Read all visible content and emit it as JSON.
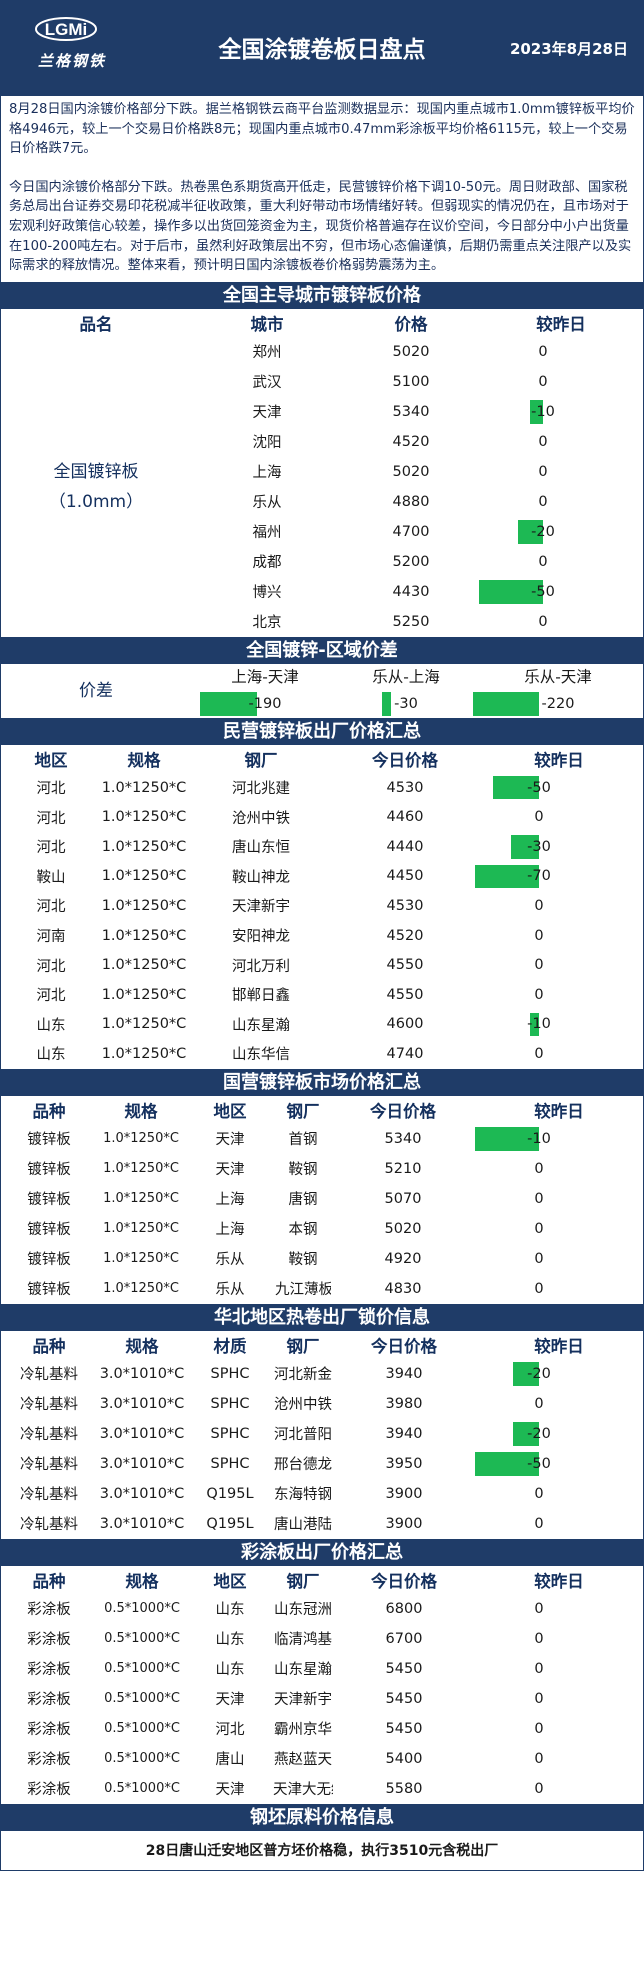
{
  "header": {
    "logo_mark": "LGMi",
    "logo_text": "兰格钢铁",
    "title": "全国涂镀卷板日盘点",
    "date": "2023年8月28日"
  },
  "intro": {
    "p1": "8月28日国内涂镀价格部分下跌。据兰格钢铁云商平台监测数据显示：现国内重点城市1.0mm镀锌板平均价格4946元，较上一个交易日价格跌8元；现国内重点城市0.47mm彩涂板平均价格6115元，较上一个交易日价格跌7元。",
    "p2": "今日国内涂镀价格部分下跌。热卷黑色系期货高开低走，民营镀锌价格下调10-50元。周日财政部、国家税务总局出台证券交易印花税减半征收政策，重大利好带动市场情绪好转。但弱现实的情况仍在，且市场对于宏观利好政策信心较差，操作多以出货回笼资金为主，现货价格普遍存在议价空间，今日部分中小户出货量在100-200吨左右。对于后市，虽然利好政策层出不穷，但市场心态偏谨慎，后期仍需重点关注限产以及实际需求的释放情况。整体来看，预计明日国内涂镀板卷价格弱势震荡为主。"
  },
  "colors": {
    "navy": "#1f3c68",
    "bar_green": "#1db954"
  },
  "city_prices": {
    "title": "全国主导城市镀锌板价格",
    "headers": [
      "品名",
      "城市",
      "价格",
      "较昨日"
    ],
    "product_line1": "全国镀锌板",
    "product_line2": "（1.0mm）",
    "rows": [
      {
        "city": "郑州",
        "price": "5020",
        "change": "0",
        "change_value": 0
      },
      {
        "city": "武汉",
        "price": "5100",
        "change": "0",
        "change_value": 0
      },
      {
        "city": "天津",
        "price": "5340",
        "change": "-10",
        "change_value": -10
      },
      {
        "city": "沈阳",
        "price": "4520",
        "change": "0",
        "change_value": 0
      },
      {
        "city": "上海",
        "price": "5020",
        "change": "0",
        "change_value": 0
      },
      {
        "city": "乐从",
        "price": "4880",
        "change": "0",
        "change_value": 0
      },
      {
        "city": "福州",
        "price": "4700",
        "change": "-20",
        "change_value": -20
      },
      {
        "city": "成都",
        "price": "5200",
        "change": "0",
        "change_value": 0
      },
      {
        "city": "博兴",
        "price": "4430",
        "change": "-50",
        "change_value": -50
      },
      {
        "city": "北京",
        "price": "5250",
        "change": "0",
        "change_value": 0
      }
    ]
  },
  "spread": {
    "title": "全国镀锌-区域价差",
    "label": "价差",
    "cols": [
      {
        "name": "上海-天津",
        "value": "-190",
        "number": -190
      },
      {
        "name": "乐从-上海",
        "value": "-30",
        "number": -30
      },
      {
        "name": "乐从-天津",
        "value": "-220",
        "number": -220
      }
    ]
  },
  "private_mills": {
    "title": "民营镀锌板出厂价格汇总",
    "headers": [
      "地区",
      "规格",
      "钢厂",
      "今日价格",
      "较昨日"
    ],
    "rows": [
      {
        "region": "河北",
        "spec": "1.0*1250*C",
        "mill": "河北兆建",
        "price": "4530",
        "change": "-50",
        "change_value": -50
      },
      {
        "region": "河北",
        "spec": "1.0*1250*C",
        "mill": "沧州中铁",
        "price": "4460",
        "change": "0",
        "change_value": 0
      },
      {
        "region": "河北",
        "spec": "1.0*1250*C",
        "mill": "唐山东恒",
        "price": "4440",
        "change": "-30",
        "change_value": -30
      },
      {
        "region": "鞍山",
        "spec": "1.0*1250*C",
        "mill": "鞍山神龙",
        "price": "4450",
        "change": "-70",
        "change_value": -70
      },
      {
        "region": "河北",
        "spec": "1.0*1250*C",
        "mill": "天津新宇",
        "price": "4530",
        "change": "0",
        "change_value": 0
      },
      {
        "region": "河南",
        "spec": "1.0*1250*C",
        "mill": "安阳神龙",
        "price": "4520",
        "change": "0",
        "change_value": 0
      },
      {
        "region": "河北",
        "spec": "1.0*1250*C",
        "mill": "河北万利",
        "price": "4550",
        "change": "0",
        "change_value": 0
      },
      {
        "region": "河北",
        "spec": "1.0*1250*C",
        "mill": "邯郸日鑫",
        "price": "4550",
        "change": "0",
        "change_value": 0
      },
      {
        "region": "山东",
        "spec": "1.0*1250*C",
        "mill": "山东星瀚",
        "price": "4600",
        "change": "-10",
        "change_value": -10
      },
      {
        "region": "山东",
        "spec": "1.0*1250*C",
        "mill": "山东华信",
        "price": "4740",
        "change": "0",
        "change_value": 0
      }
    ]
  },
  "state_mills": {
    "title": "国营镀锌板市场价格汇总",
    "headers": [
      "品种",
      "规格",
      "地区",
      "钢厂",
      "今日价格",
      "较昨日"
    ],
    "rows": [
      {
        "variety": "镀锌板",
        "spec": "1.0*1250*C",
        "region": "天津",
        "mill": "首钢",
        "price": "5340",
        "change": "-10",
        "change_value": -10
      },
      {
        "variety": "镀锌板",
        "spec": "1.0*1250*C",
        "region": "天津",
        "mill": "鞍钢",
        "price": "5210",
        "change": "0",
        "change_value": 0
      },
      {
        "variety": "镀锌板",
        "spec": "1.0*1250*C",
        "region": "上海",
        "mill": "唐钢",
        "price": "5070",
        "change": "0",
        "change_value": 0
      },
      {
        "variety": "镀锌板",
        "spec": "1.0*1250*C",
        "region": "上海",
        "mill": "本钢",
        "price": "5020",
        "change": "0",
        "change_value": 0
      },
      {
        "variety": "镀锌板",
        "spec": "1.0*1250*C",
        "region": "乐从",
        "mill": "鞍钢",
        "price": "4920",
        "change": "0",
        "change_value": 0
      },
      {
        "variety": "镀锌板",
        "spec": "1.0*1250*C",
        "region": "乐从",
        "mill": "九江薄板",
        "price": "4830",
        "change": "0",
        "change_value": 0
      }
    ]
  },
  "north_hot_roll": {
    "title": "华北地区热卷出厂锁价信息",
    "headers": [
      "品种",
      "规格",
      "材质",
      "钢厂",
      "今日价格",
      "较昨日"
    ],
    "rows": [
      {
        "variety": "冷轧基料",
        "spec": "3.0*1010*C",
        "material": "SPHC",
        "mill": "河北新金",
        "price": "3940",
        "change": "-20",
        "change_value": -20
      },
      {
        "variety": "冷轧基料",
        "spec": "3.0*1010*C",
        "material": "SPHC",
        "mill": "沧州中铁",
        "price": "3980",
        "change": "0",
        "change_value": 0
      },
      {
        "variety": "冷轧基料",
        "spec": "3.0*1010*C",
        "material": "SPHC",
        "mill": "河北普阳",
        "price": "3940",
        "change": "-20",
        "change_value": -20
      },
      {
        "variety": "冷轧基料",
        "spec": "3.0*1010*C",
        "material": "SPHC",
        "mill": "邢台德龙",
        "price": "3950",
        "change": "-50",
        "change_value": -50
      },
      {
        "variety": "冷轧基料",
        "spec": "3.0*1010*C",
        "material": "Q195L",
        "mill": "东海特钢",
        "price": "3900",
        "change": "0",
        "change_value": 0
      },
      {
        "variety": "冷轧基料",
        "spec": "3.0*1010*C",
        "material": "Q195L",
        "mill": "唐山港陆",
        "price": "3900",
        "change": "0",
        "change_value": 0
      }
    ]
  },
  "color_coated": {
    "title": "彩涂板出厂价格汇总",
    "headers": [
      "品种",
      "规格",
      "地区",
      "钢厂",
      "今日价格",
      "较昨日"
    ],
    "rows": [
      {
        "variety": "彩涂板",
        "spec": "0.5*1000*C",
        "region": "山东",
        "mill": "山东冠洲",
        "price": "6800",
        "change": "0",
        "change_value": 0
      },
      {
        "variety": "彩涂板",
        "spec": "0.5*1000*C",
        "region": "山东",
        "mill": "临清鸿基",
        "price": "6700",
        "change": "0",
        "change_value": 0
      },
      {
        "variety": "彩涂板",
        "spec": "0.5*1000*C",
        "region": "山东",
        "mill": "山东星瀚",
        "price": "5450",
        "change": "0",
        "change_value": 0
      },
      {
        "variety": "彩涂板",
        "spec": "0.5*1000*C",
        "region": "天津",
        "mill": "天津新宇",
        "price": "5450",
        "change": "0",
        "change_value": 0
      },
      {
        "variety": "彩涂板",
        "spec": "0.5*1000*C",
        "region": "河北",
        "mill": "霸州京华",
        "price": "5450",
        "change": "0",
        "change_value": 0
      },
      {
        "variety": "彩涂板",
        "spec": "0.5*1000*C",
        "region": "唐山",
        "mill": "燕赵蓝天",
        "price": "5400",
        "change": "0",
        "change_value": 0
      },
      {
        "variety": "彩涂板",
        "spec": "0.5*1000*C",
        "region": "天津",
        "mill": "天津大无缝",
        "price": "5580",
        "change": "0",
        "change_value": 0
      }
    ]
  },
  "billet": {
    "title": "钢坯原料价格信息",
    "note": "28日唐山迁安地区普方坯价格稳，执行3510元含税出厂"
  }
}
